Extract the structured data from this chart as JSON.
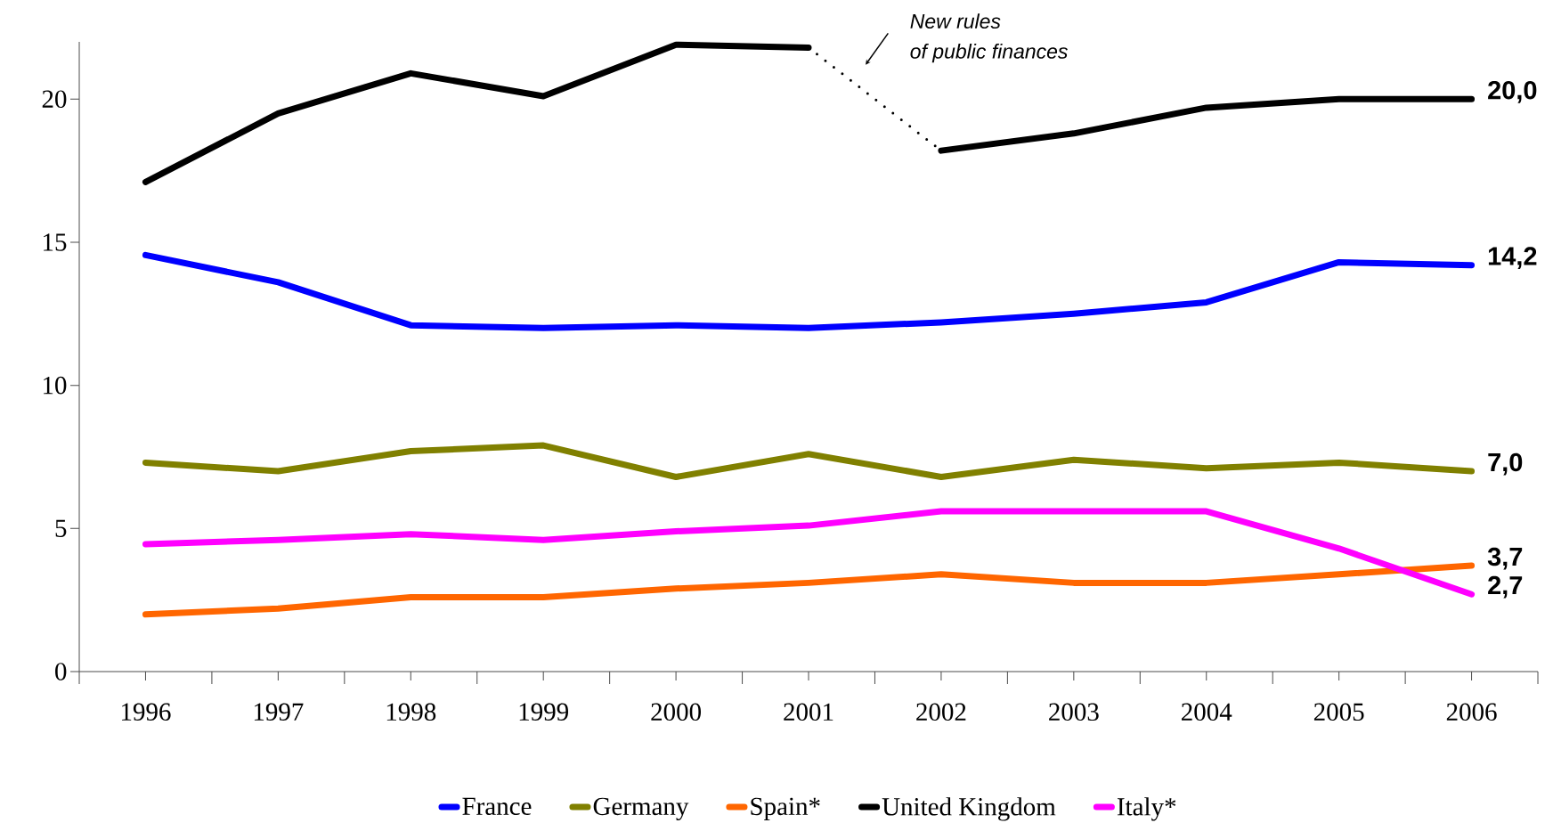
{
  "chart_data": {
    "type": "line",
    "categories": [
      "1996",
      "1997",
      "1998",
      "1999",
      "2000",
      "2001",
      "2002",
      "2003",
      "2004",
      "2005",
      "2006"
    ],
    "series": [
      {
        "name": "France",
        "color": "#0000ff",
        "values": [
          14.55,
          13.6,
          12.1,
          12.0,
          12.1,
          12.0,
          12.2,
          12.5,
          12.9,
          14.3,
          14.2
        ],
        "value_labels": [
          null,
          null,
          null,
          null,
          null,
          null,
          null,
          null,
          null,
          null,
          "14,2"
        ]
      },
      {
        "name": "Germany",
        "color": "#808000",
        "values": [
          7.3,
          7.0,
          7.7,
          7.9,
          6.8,
          7.6,
          6.8,
          7.4,
          7.1,
          7.3,
          7.0
        ],
        "value_labels": [
          null,
          null,
          null,
          null,
          null,
          null,
          null,
          null,
          null,
          null,
          "7,0"
        ]
      },
      {
        "name": "Spain*",
        "color": "#ff6600",
        "values": [
          2.0,
          2.2,
          2.6,
          2.6,
          2.9,
          3.1,
          3.4,
          3.1,
          3.1,
          3.4,
          3.7
        ],
        "value_labels": [
          null,
          null,
          null,
          null,
          null,
          null,
          null,
          null,
          null,
          null,
          "3,7"
        ]
      },
      {
        "name": "United Kingdom",
        "color": "#000000",
        "values": [
          17.1,
          19.5,
          20.9,
          20.1,
          21.9,
          21.8,
          null,
          null,
          null,
          null,
          null
        ]
      },
      {
        "color": "#000000",
        "line_style": "dotted",
        "values": [
          null,
          null,
          null,
          null,
          null,
          21.8,
          18.2,
          null,
          null,
          null,
          null
        ]
      },
      {
        "color": "#000000",
        "values": [
          null,
          null,
          null,
          null,
          null,
          null,
          18.2,
          18.8,
          19.7,
          20.0,
          20.0
        ],
        "value_labels": [
          null,
          null,
          null,
          null,
          null,
          null,
          null,
          null,
          null,
          null,
          "20,0"
        ]
      },
      {
        "name": "Italy*",
        "color": "#ff00ff",
        "values": [
          4.45,
          4.6,
          4.8,
          4.6,
          4.9,
          5.1,
          5.6,
          5.6,
          5.6,
          4.3,
          2.7
        ],
        "value_labels": [
          null,
          null,
          null,
          null,
          null,
          null,
          null,
          null,
          null,
          null,
          "2,7"
        ]
      }
    ],
    "ylim": [
      0,
      22
    ],
    "yticks": [
      0,
      5,
      10,
      15,
      20
    ],
    "grid": false,
    "legend": "bottom",
    "line_style": "solid",
    "annotations": [
      "New rules",
      "of public finances"
    ]
  }
}
